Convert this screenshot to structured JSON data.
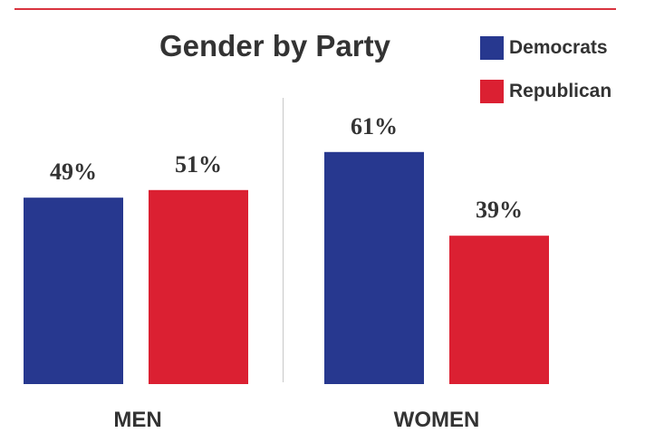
{
  "chart_data": {
    "type": "bar",
    "title": "Gender by Party",
    "categories": [
      "MEN",
      "WOMEN"
    ],
    "series": [
      {
        "name": "Democrats",
        "color": "#27388f",
        "values": [
          49,
          61
        ],
        "labels": [
          "49%",
          "61%"
        ]
      },
      {
        "name": "Republican",
        "color": "#db2032",
        "values": [
          51,
          39
        ],
        "labels": [
          "51%",
          "39%"
        ]
      }
    ],
    "xlabel": "",
    "ylabel": "",
    "ylim": [
      0,
      100
    ],
    "grid": false,
    "legend_position": "top-right"
  },
  "colors": {
    "accent_rule": "#d9343f",
    "democrats": "#27388f",
    "republican": "#db2032",
    "text": "#333333"
  }
}
